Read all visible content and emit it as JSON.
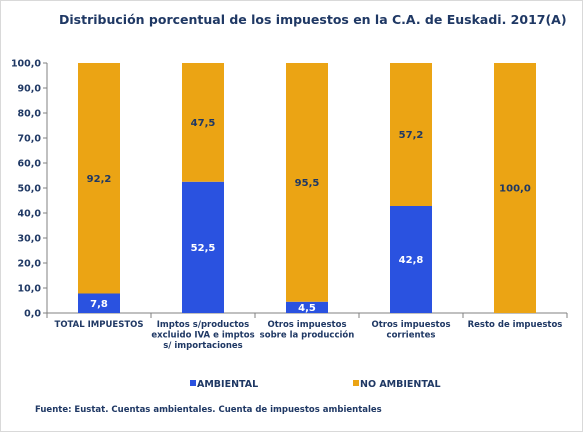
{
  "colors": {
    "ambiental": "#2a52e0",
    "no_ambiental": "#eba414",
    "text": "#1f3864",
    "axis": "#808080",
    "ambiental_label": "#ffffff",
    "no_ambiental_label": "#1f3864"
  },
  "chart_data": {
    "type": "bar",
    "stacked": true,
    "title": "Distribución porcentual de los impuestos en la C.A. de Euskadi. 2017(A)",
    "xlabel": "",
    "ylabel": "",
    "ylim": [
      0,
      100
    ],
    "yticks": [
      "0,0",
      "10,0",
      "20,0",
      "30,0",
      "40,0",
      "50,0",
      "60,0",
      "70,0",
      "80,0",
      "90,0",
      "100,0"
    ],
    "grid": false,
    "legend_position": "bottom",
    "categories": [
      [
        "TOTAL IMPUESTOS"
      ],
      [
        "Imptos s/productos",
        "excluido IVA e imptos",
        "s/ importaciones"
      ],
      [
        "Otros impuestos",
        "sobre la producción"
      ],
      [
        "Otros impuestos",
        "corrientes"
      ],
      [
        "Resto de impuestos"
      ]
    ],
    "series": [
      {
        "name": "AMBIENTAL",
        "values": [
          7.8,
          52.5,
          4.5,
          42.8,
          0
        ],
        "labels": [
          "7,8",
          "52,5",
          "4,5",
          "42,8",
          ""
        ]
      },
      {
        "name": "NO AMBIENTAL",
        "values": [
          92.2,
          47.5,
          95.5,
          57.2,
          100.0
        ],
        "labels": [
          "92,2",
          "47,5",
          "95,5",
          "57,2",
          "100,0"
        ]
      }
    ]
  },
  "legend": {
    "ambiental": "AMBIENTAL",
    "no_ambiental": "NO AMBIENTAL"
  },
  "source": "Fuente: Eustat. Cuentas ambientales. Cuenta de impuestos ambientales"
}
